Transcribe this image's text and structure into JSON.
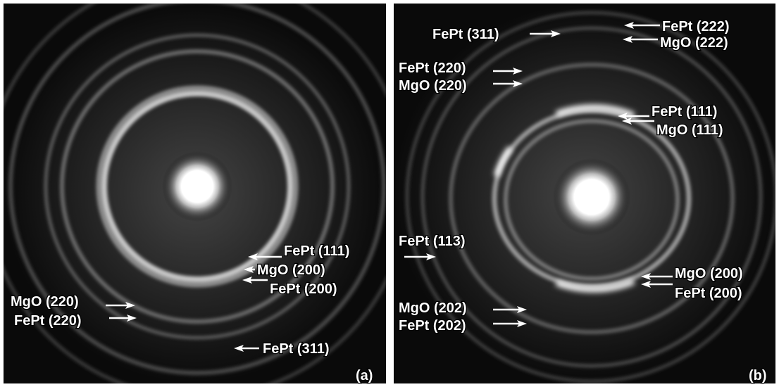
{
  "panels": [
    {
      "tag": "(a)",
      "labels": [
        "FePt (111)",
        "MgO (200)",
        "FePt (200)",
        "MgO (220)",
        "FePt (220)",
        "FePt (311)"
      ]
    },
    {
      "tag": "(b)",
      "labels": [
        "FePt (311)",
        "FePt (222)",
        "MgO (222)",
        "FePt (220)",
        "MgO (220)",
        "FePt (111)",
        "MgO (111)",
        "FePt (113)",
        "MgO (200)",
        "FePt (200)",
        "MgO (202)",
        "FePt (202)"
      ]
    }
  ]
}
